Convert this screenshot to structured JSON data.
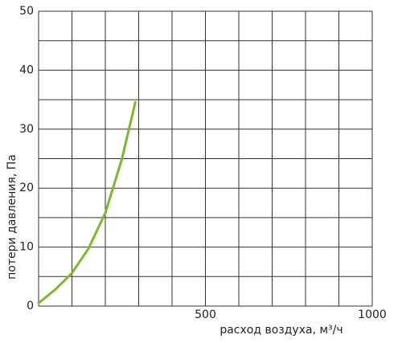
{
  "chart_data": {
    "type": "line",
    "x_label": "расход воздуха, м³/ч",
    "y_label": "потери давления, Па",
    "x": [
      0,
      50,
      100,
      150,
      200,
      250,
      290
    ],
    "series": [
      {
        "color": "#7cb82f",
        "values": [
          0.5,
          2.8,
          5.6,
          9.8,
          15.8,
          25,
          34.6
        ]
      }
    ],
    "xlim": [
      0,
      1000
    ],
    "xticks": [
      500,
      1000
    ],
    "xminor": [
      0,
      100,
      200,
      300,
      400,
      600,
      700,
      800,
      900
    ],
    "ylim": [
      0,
      50
    ],
    "yticks": [
      0,
      10,
      20,
      30,
      40,
      50
    ],
    "yminor": [
      5,
      15,
      25,
      35,
      45
    ],
    "grid": true
  }
}
